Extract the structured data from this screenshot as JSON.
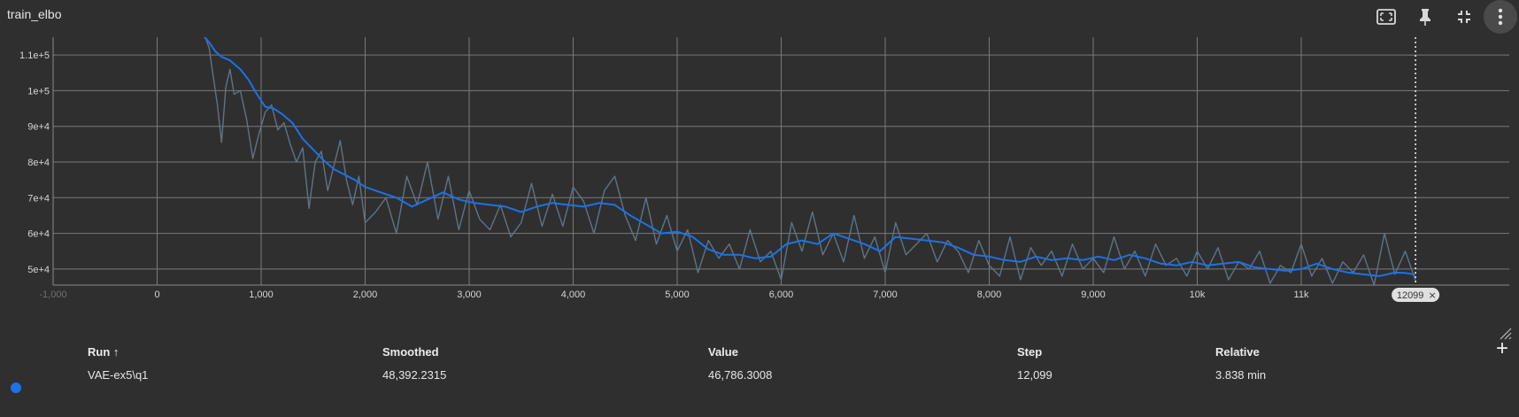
{
  "card": {
    "title": "train_elbo"
  },
  "toolbar": {
    "icons": [
      "fit-screen-icon",
      "pin-icon",
      "collapse-icon",
      "more-vert-icon"
    ]
  },
  "chart_data": {
    "type": "line",
    "xlabel": "",
    "ylabel": "",
    "xlim": [
      -1000,
      13000
    ],
    "ylim": [
      45500,
      115000
    ],
    "x_ticks": [
      -1000,
      0,
      1000,
      2000,
      3000,
      4000,
      5000,
      6000,
      7000,
      8000,
      9000,
      10000,
      11000
    ],
    "x_tick_labels": [
      "-1,000",
      "0",
      "1,000",
      "2,000",
      "3,000",
      "4,000",
      "5,000",
      "6,000",
      "7,000",
      "8,000",
      "9,000",
      "10k",
      "11k"
    ],
    "y_ticks": [
      50000,
      60000,
      70000,
      80000,
      90000,
      100000,
      110000
    ],
    "y_tick_labels": [
      "5e+4",
      "6e+4",
      "7e+4",
      "8e+4",
      "9e+4",
      "1e+5",
      "1.1e+5"
    ],
    "grid": true,
    "hover_step": 12099,
    "hover_label": "12099",
    "series": [
      {
        "role": "smoothed",
        "color": "#1a73e8",
        "x": [
          250,
          400,
          500,
          560,
          620,
          700,
          800,
          880,
          960,
          1040,
          1120,
          1200,
          1300,
          1400,
          1500,
          1600,
          1700,
          1800,
          1900,
          2000,
          2150,
          2300,
          2450,
          2600,
          2750,
          2900,
          3050,
          3200,
          3350,
          3500,
          3650,
          3800,
          3950,
          4100,
          4250,
          4400,
          4550,
          4700,
          4850,
          5000,
          5150,
          5300,
          5450,
          5600,
          5750,
          5900,
          6050,
          6200,
          6350,
          6500,
          6650,
          6800,
          6950,
          7100,
          7250,
          7400,
          7550,
          7700,
          7850,
          8000,
          8150,
          8300,
          8450,
          8600,
          8750,
          8900,
          9050,
          9200,
          9350,
          9500,
          9650,
          9800,
          9950,
          10100,
          10250,
          10400,
          10550,
          10700,
          10850,
          11000,
          11150,
          11300,
          11450,
          11600,
          11750,
          11900,
          12000,
          12099
        ],
        "values": [
          120000,
          117000,
          113500,
          111000,
          109500,
          108500,
          106000,
          103000,
          99000,
          95500,
          95000,
          93500,
          91000,
          86500,
          83500,
          80500,
          78000,
          76500,
          75000,
          73000,
          71500,
          70000,
          67500,
          69500,
          71500,
          69500,
          68500,
          68000,
          67500,
          66000,
          67500,
          68500,
          68000,
          67500,
          68500,
          68000,
          65000,
          62500,
          60000,
          60500,
          59000,
          55500,
          54000,
          54000,
          53000,
          53500,
          57000,
          58000,
          57000,
          60000,
          58500,
          57000,
          55000,
          59000,
          58500,
          58000,
          57500,
          56000,
          54000,
          53500,
          52500,
          52000,
          53500,
          52500,
          53000,
          52500,
          53500,
          52500,
          54000,
          53000,
          51500,
          51000,
          52000,
          51000,
          51500,
          52000,
          50500,
          50000,
          49500,
          50000,
          51500,
          50000,
          49000,
          48500,
          48000,
          49000,
          48900,
          48392.2315
        ]
      },
      {
        "role": "raw",
        "color": "#5f7386",
        "x": [
          250,
          380,
          450,
          500,
          540,
          580,
          620,
          660,
          700,
          740,
          800,
          860,
          920,
          980,
          1040,
          1100,
          1160,
          1220,
          1280,
          1340,
          1400,
          1460,
          1520,
          1580,
          1640,
          1700,
          1760,
          1820,
          1880,
          1940,
          2000,
          2100,
          2200,
          2300,
          2400,
          2500,
          2600,
          2700,
          2800,
          2900,
          3000,
          3100,
          3200,
          3300,
          3400,
          3500,
          3600,
          3700,
          3800,
          3900,
          4000,
          4100,
          4200,
          4300,
          4400,
          4500,
          4600,
          4700,
          4800,
          4900,
          5000,
          5100,
          5200,
          5300,
          5400,
          5500,
          5600,
          5700,
          5800,
          5900,
          6000,
          6100,
          6200,
          6300,
          6400,
          6500,
          6600,
          6700,
          6800,
          6900,
          7000,
          7100,
          7200,
          7300,
          7400,
          7500,
          7600,
          7700,
          7800,
          7900,
          8000,
          8100,
          8200,
          8300,
          8400,
          8500,
          8600,
          8700,
          8800,
          8900,
          9000,
          9100,
          9200,
          9300,
          9400,
          9500,
          9600,
          9700,
          9800,
          9900,
          10000,
          10100,
          10200,
          10300,
          10400,
          10500,
          10600,
          10700,
          10800,
          10900,
          11000,
          11100,
          11200,
          11300,
          11400,
          11500,
          11600,
          11700,
          11800,
          11900,
          12000,
          12099
        ],
        "values": [
          118000,
          121000,
          116000,
          112000,
          104000,
          96000,
          85500,
          101000,
          106000,
          99000,
          100000,
          92000,
          81000,
          88000,
          94000,
          96000,
          89000,
          91000,
          85000,
          80000,
          84000,
          67000,
          80000,
          83000,
          72000,
          79000,
          86000,
          75000,
          68000,
          76000,
          63000,
          66000,
          70000,
          60000,
          76000,
          68000,
          80000,
          64000,
          76000,
          61000,
          72000,
          64000,
          61000,
          68000,
          59000,
          63000,
          74000,
          62000,
          71000,
          62000,
          73000,
          69000,
          60000,
          72000,
          76000,
          65000,
          58000,
          70000,
          57000,
          65000,
          55000,
          61000,
          49000,
          58000,
          53000,
          57000,
          50000,
          61000,
          52000,
          55000,
          47000,
          63000,
          55000,
          66000,
          54000,
          60000,
          52000,
          65000,
          53000,
          59000,
          49000,
          63000,
          54000,
          57000,
          60000,
          52000,
          58000,
          55000,
          49000,
          58000,
          51000,
          48000,
          59000,
          47000,
          56000,
          51000,
          55000,
          48000,
          57000,
          50000,
          53000,
          49000,
          59000,
          50000,
          55000,
          48000,
          57000,
          51000,
          53000,
          48000,
          55000,
          50000,
          56000,
          47000,
          52000,
          50000,
          55000,
          46000,
          51000,
          49000,
          57000,
          48000,
          53000,
          46000,
          52000,
          49000,
          54000,
          45500,
          60000,
          48500,
          55000,
          46786.3008
        ]
      }
    ]
  },
  "table": {
    "headers": {
      "run": "Run ↑",
      "smoothed": "Smoothed",
      "value": "Value",
      "step": "Step",
      "relative": "Relative"
    },
    "rows": [
      {
        "color": "#1a73e8",
        "run": "VAE-ex5\\q1",
        "smoothed": "48,392.2315",
        "value": "46,786.3008",
        "step": "12,099",
        "relative": "3.838 min"
      }
    ],
    "add_label": "+"
  }
}
